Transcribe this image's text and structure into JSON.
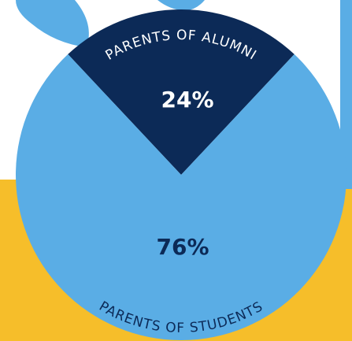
{
  "chart_data": {
    "type": "pie",
    "categories": [
      "PARENTS OF ALUMNI",
      "PARENTS OF STUDENTS"
    ],
    "values": [
      24,
      76
    ],
    "value_labels": [
      "24%",
      "76%"
    ],
    "colors": [
      "#0c2a57",
      "#5aade5"
    ],
    "label_colors": [
      "#ffffff",
      "#0c2a57"
    ]
  }
}
